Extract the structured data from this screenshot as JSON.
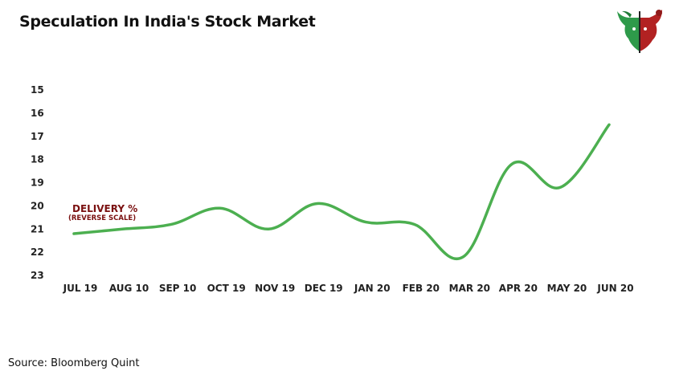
{
  "header": {
    "title": "Speculation In India's Stock Market"
  },
  "footer": {
    "source": "Source: Bloomberg Quint"
  },
  "logo": {
    "icon": "bull-bear-logo-icon",
    "colors": {
      "bull": "#2e9a4a",
      "bear": "#b22222"
    }
  },
  "chart_data": {
    "type": "line",
    "title": "Speculation In India's Stock Market",
    "xlabel": "",
    "ylabel": "",
    "categories": [
      "JUL 19",
      "AUG 10",
      "SEP 10",
      "OCT 19",
      "NOV 19",
      "DEC 19",
      "JAN 20",
      "FEB 20",
      "MAR 20",
      "APR 20",
      "MAY 20",
      "JUN 20"
    ],
    "series": [
      {
        "values": [
          21.2,
          21.0,
          20.8,
          20.1,
          21.0,
          19.9,
          20.7,
          20.8,
          22.2,
          18.2,
          19.2,
          16.5
        ],
        "color": "#4caf50"
      }
    ],
    "y_ticks": [
      15,
      16,
      17,
      18,
      19,
      20,
      21,
      22,
      23
    ],
    "ylim": [
      15,
      23
    ],
    "y_reversed": true,
    "grid": false,
    "legend": "none",
    "annotation": {
      "label": "DELIVERY %",
      "sublabel": "(REVERSE SCALE)",
      "color": "#7a1010"
    }
  }
}
